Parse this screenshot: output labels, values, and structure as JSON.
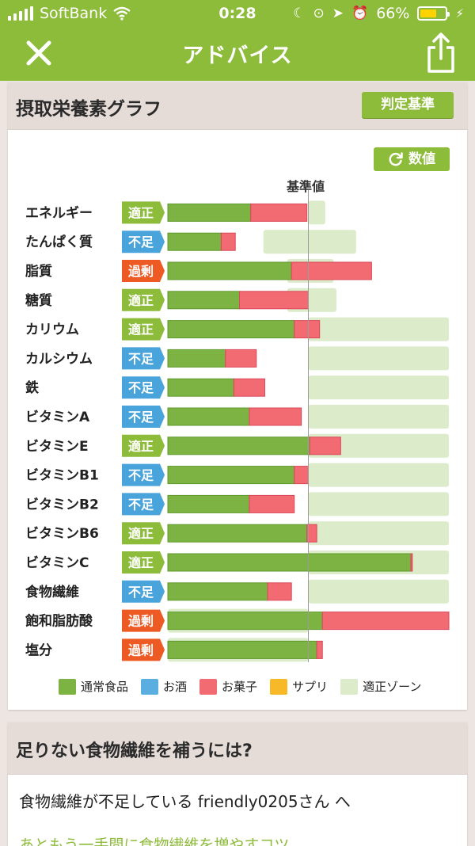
{
  "status": {
    "carrier": "SoftBank",
    "time": "0:28",
    "battery": "66%",
    "battery_level": 0.66
  },
  "header": {
    "title": "アドバイス",
    "close_icon": "close-icon",
    "share_icon": "share-icon"
  },
  "graph_card": {
    "title": "摂取栄養素グラフ",
    "criteria_label": "判定基準",
    "numbers_label": "数値",
    "reference_label": "基準値",
    "legend": [
      {
        "label": "通常食品",
        "color": "#7cb342"
      },
      {
        "label": "お酒",
        "color": "#5aaee0"
      },
      {
        "label": "お菓子",
        "color": "#f26b73"
      },
      {
        "label": "サプリ",
        "color": "#f7b928"
      },
      {
        "label": "適正ゾーン",
        "color": "#dcebc9"
      }
    ]
  },
  "chart_data": {
    "type": "bar",
    "stacked": true,
    "orientation": "horizontal",
    "reference_value": 100,
    "categories": [
      "エネルギー",
      "たんぱく質",
      "脂質",
      "糖質",
      "カリウム",
      "カルシウム",
      "鉄",
      "ビタミンA",
      "ビタミンE",
      "ビタミンB1",
      "ビタミンB2",
      "ビタミンB6",
      "ビタミンC",
      "食物繊維",
      "飽和脂肪酸",
      "塩分"
    ],
    "judgments": [
      "適正",
      "不足",
      "過剰",
      "適正",
      "適正",
      "不足",
      "不足",
      "不足",
      "適正",
      "不足",
      "不足",
      "適正",
      "適正",
      "不足",
      "過剰",
      "過剰"
    ],
    "judgment_colors": {
      "適正": "#8dbb3a",
      "不足": "#4aa4dc",
      "過剰": "#ee5a24"
    },
    "series": [
      {
        "name": "通常食品",
        "values": [
          59,
          38,
          88,
          51,
          90,
          41,
          47,
          58,
          101,
          90,
          58,
          99,
          173,
          71,
          110,
          106
        ]
      },
      {
        "name": "お菓子",
        "values": [
          40,
          10,
          57,
          49,
          18,
          22,
          22,
          37,
          22,
          10,
          32,
          7,
          1,
          17,
          92,
          4
        ]
      }
    ],
    "appropriate_zone": [
      [
        100,
        112
      ],
      [
        68,
        134
      ],
      [
        85,
        118
      ],
      [
        85,
        120
      ],
      [
        100,
        200
      ],
      [
        100,
        200
      ],
      [
        100,
        200
      ],
      [
        100,
        200
      ],
      [
        100,
        200
      ],
      [
        100,
        200
      ],
      [
        100,
        200
      ],
      [
        100,
        200
      ],
      [
        100,
        200
      ],
      [
        100,
        200
      ],
      [
        0,
        100
      ],
      [
        0,
        100
      ]
    ],
    "xlim": [
      0,
      200
    ]
  },
  "advice_card": {
    "title": "足りない食物繊維を補うには?",
    "message": "食物繊維が不足している friendly0205さん へ",
    "link": "あともう一手間に食物繊維を増やすコツ"
  }
}
